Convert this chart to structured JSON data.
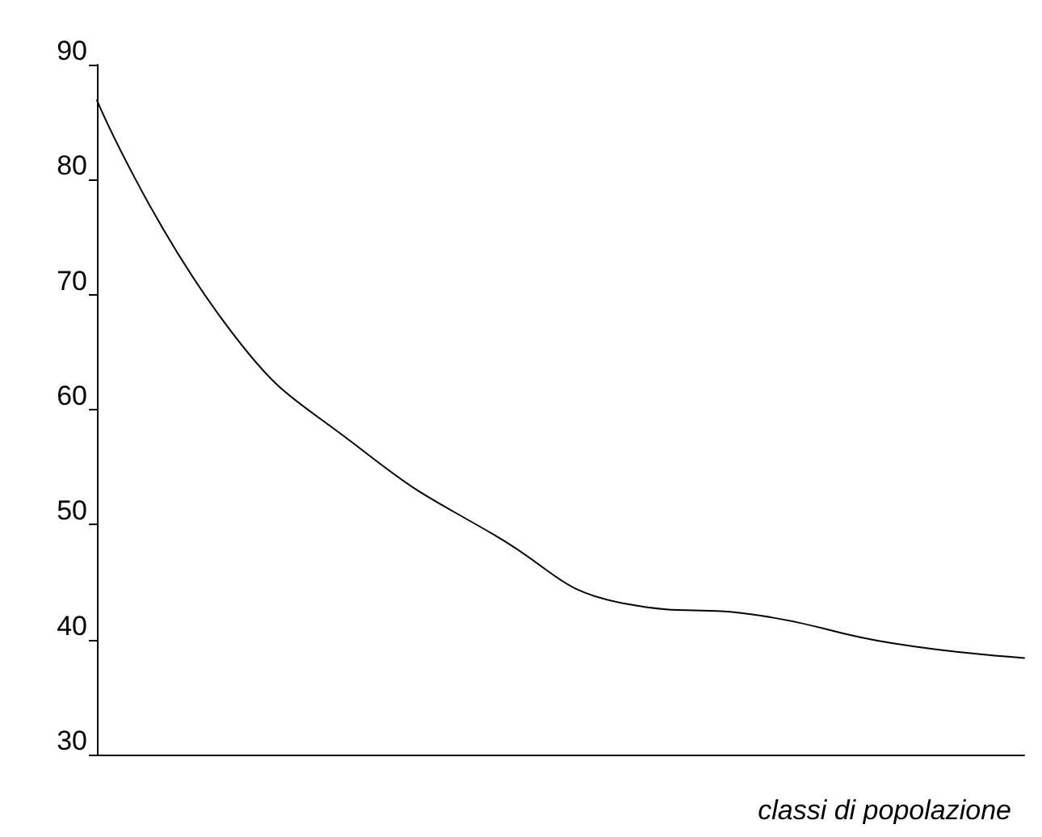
{
  "chart_data": {
    "type": "line",
    "xlabel": "classi di popolazione",
    "categories": [
      null,
      null,
      null,
      null,
      null,
      null,
      null,
      null
    ],
    "series": [
      {
        "color": "#000000",
        "values": [
          86.9,
          67.0,
          56.5,
          49.1,
          43.1,
          42.1,
          39.7,
          38.4
        ]
      }
    ],
    "ylim": [
      30,
      90
    ],
    "yticks": [
      30,
      40,
      50,
      60,
      70,
      80,
      90
    ],
    "grid": false,
    "marker": "none",
    "line_style": "solid"
  }
}
